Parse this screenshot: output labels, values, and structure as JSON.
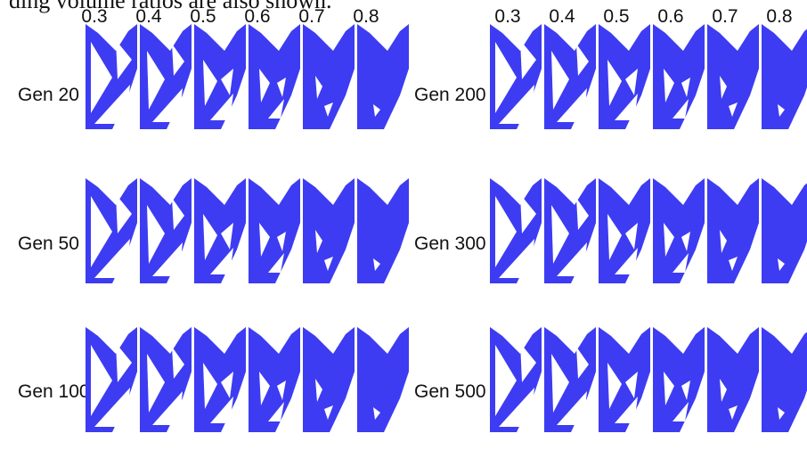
{
  "caption": "ding volume ratios are also shown.",
  "accent_color": "#3d3cf2",
  "panels": [
    {
      "volume_ratios": [
        "0.3",
        "0.4",
        "0.5",
        "0.6",
        "0.7",
        "0.8"
      ],
      "generations": [
        "Gen 20",
        "Gen 50",
        "Gen 100"
      ]
    },
    {
      "volume_ratios": [
        "0.3",
        "0.4",
        "0.5",
        "0.6",
        "0.7",
        "0.8"
      ],
      "generations": [
        "Gen 200",
        "Gen 300",
        "Gen 500"
      ]
    }
  ]
}
